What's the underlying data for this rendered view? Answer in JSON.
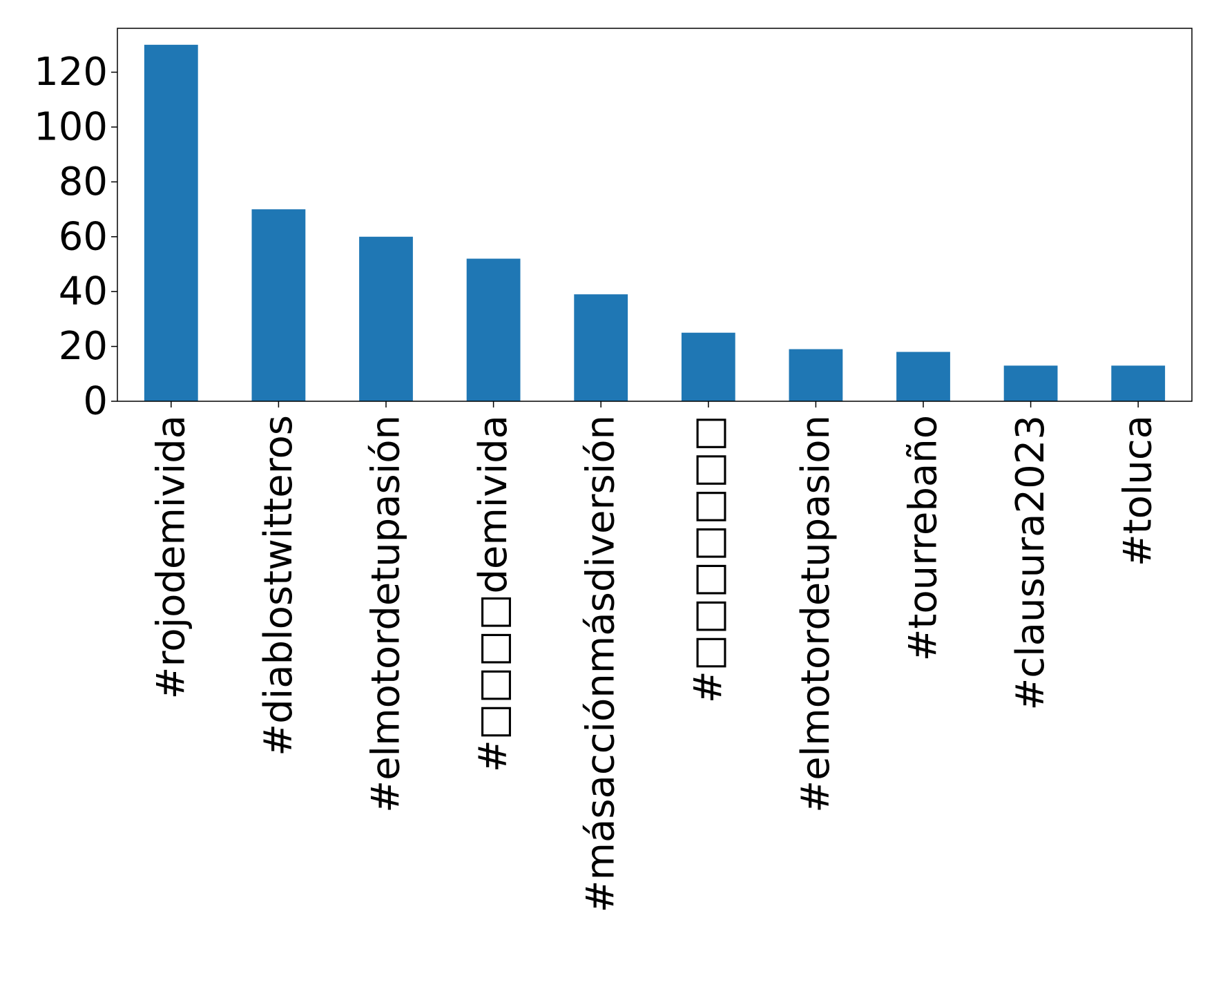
{
  "chart_data": {
    "type": "bar",
    "title": "",
    "xlabel": "",
    "ylabel": "",
    "categories": [
      "#rojodemivida",
      "#diablostwitteros",
      "#elmotordetupasión",
      "#□□□□demivida",
      "#másacciónmásdiversión",
      "#□□□□□□□",
      "#elmotordetupasion",
      "#tourrebaño",
      "#clausura2023",
      "#toluca"
    ],
    "values": [
      130,
      70,
      60,
      52,
      39,
      25,
      19,
      18,
      13,
      13
    ],
    "ylim": [
      0,
      136
    ],
    "yticks": [
      0,
      20,
      40,
      60,
      80,
      100,
      120
    ],
    "bar_color": "#1f77b4",
    "grid": false,
    "legend": "none"
  }
}
